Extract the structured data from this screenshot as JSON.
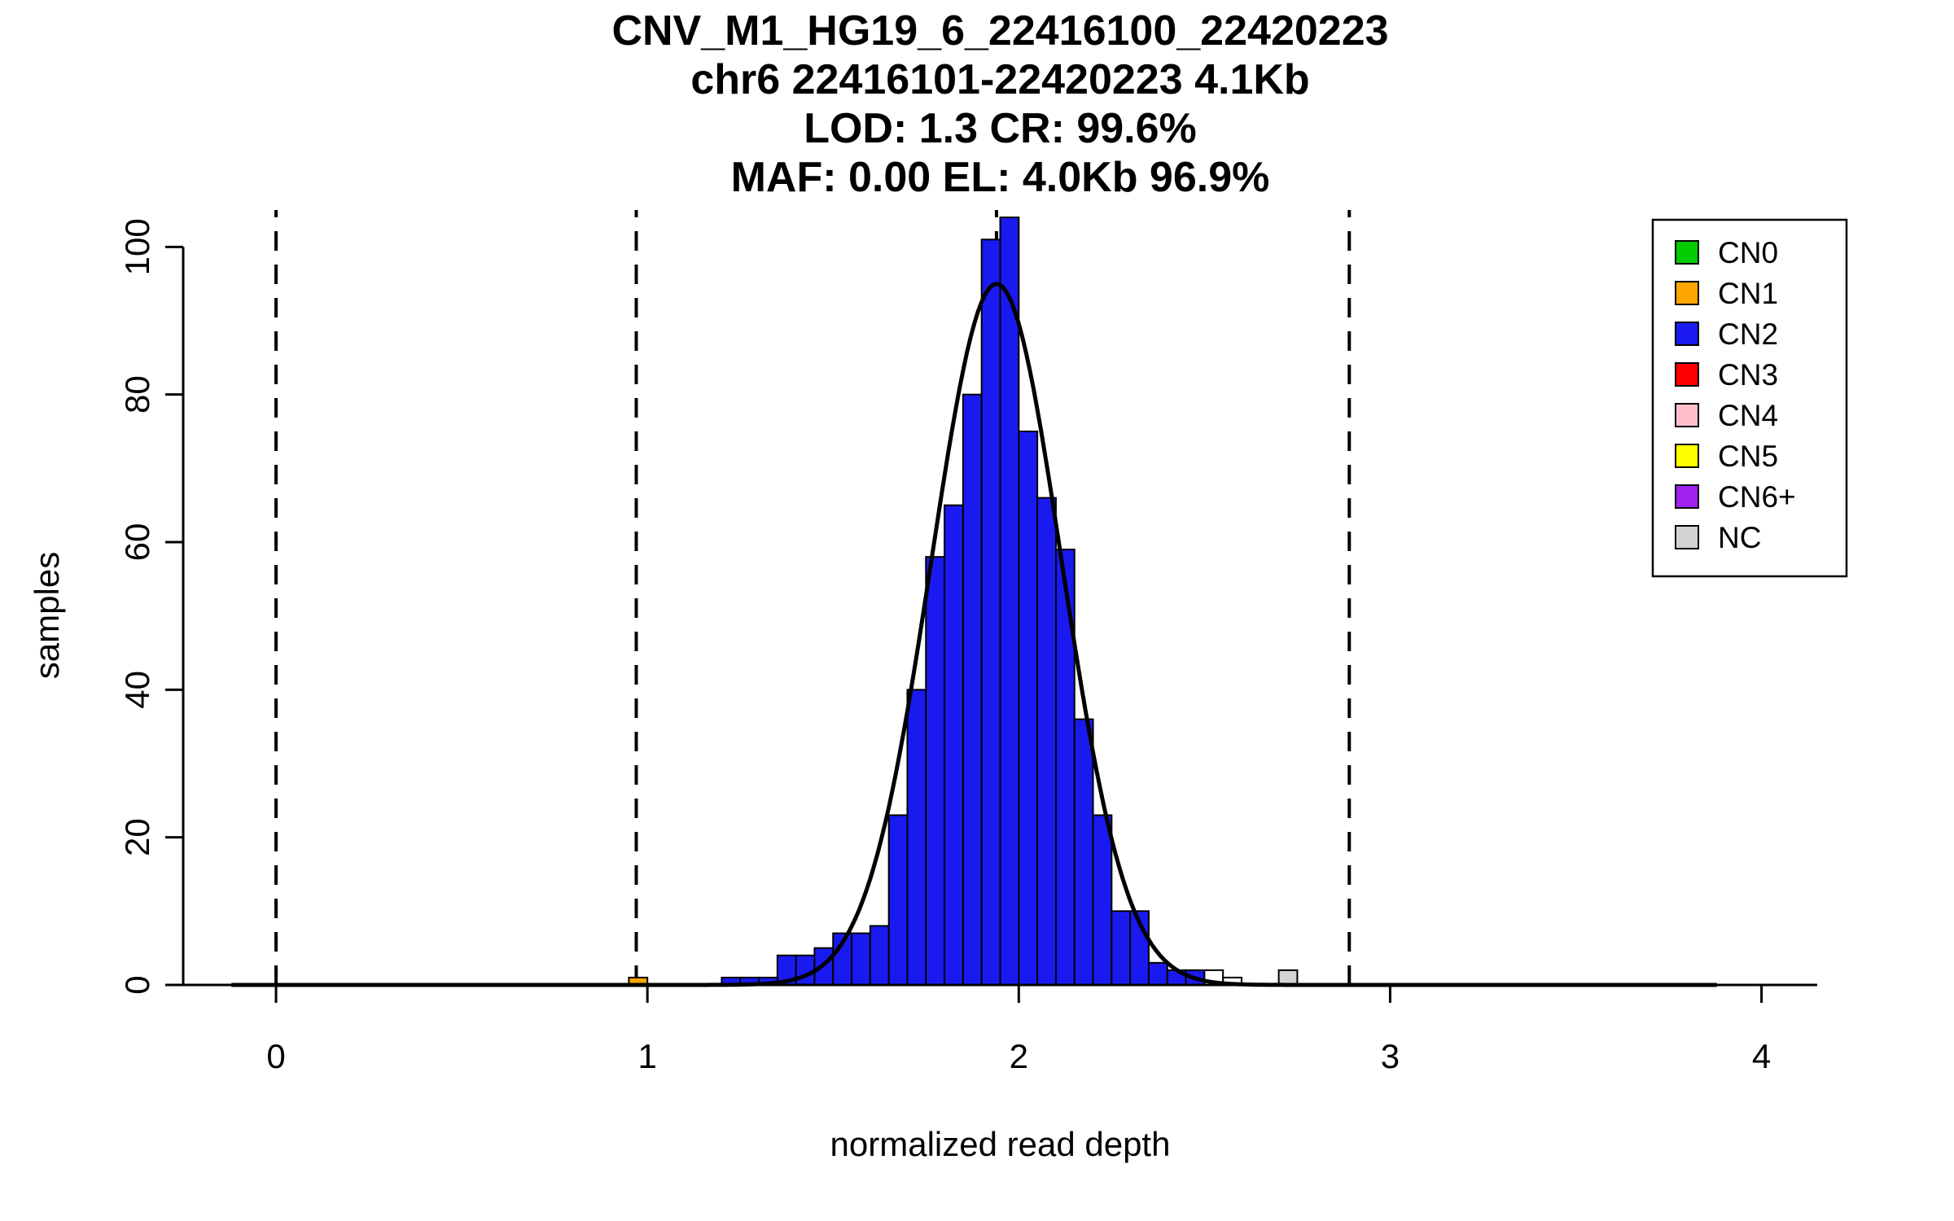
{
  "chart_data": {
    "type": "bar",
    "title_lines": [
      "CNV_M1_HG19_6_22416100_22420223",
      "chr6 22416101-22420223 4.1Kb",
      "LOD: 1.3 CR: 99.6%",
      "MAF: 0.00 EL: 4.0Kb 96.9%"
    ],
    "stats": {
      "cnv_id": "CNV_M1_HG19_6_22416100_22420223",
      "locus": "chr6 22416101-22420223",
      "size": "4.1Kb",
      "lod": "1.3",
      "call_rate": "99.6%",
      "maf": "0.00",
      "effective_length": "4.0Kb 96.9%"
    },
    "xlabel": "normalized read depth",
    "ylabel": "samples",
    "xlim": [
      -0.25,
      4.15
    ],
    "ylim": [
      0,
      105
    ],
    "x_ticks": [
      0,
      1,
      2,
      3,
      4
    ],
    "y_ticks": [
      0,
      20,
      40,
      60,
      80,
      100
    ],
    "grid": false,
    "legend_position": "top-right",
    "bin_width": 0.05,
    "bars": [
      {
        "x": 0.95,
        "h": 1,
        "cn": "CN1"
      },
      {
        "x": 1.2,
        "h": 1,
        "cn": "CN2"
      },
      {
        "x": 1.25,
        "h": 1,
        "cn": "CN2"
      },
      {
        "x": 1.3,
        "h": 1,
        "cn": "CN2"
      },
      {
        "x": 1.35,
        "h": 4,
        "cn": "CN2"
      },
      {
        "x": 1.4,
        "h": 4,
        "cn": "CN2"
      },
      {
        "x": 1.45,
        "h": 5,
        "cn": "CN2"
      },
      {
        "x": 1.5,
        "h": 7,
        "cn": "CN2"
      },
      {
        "x": 1.55,
        "h": 7,
        "cn": "CN2"
      },
      {
        "x": 1.6,
        "h": 8,
        "cn": "CN2"
      },
      {
        "x": 1.65,
        "h": 23,
        "cn": "CN2"
      },
      {
        "x": 1.7,
        "h": 40,
        "cn": "CN2"
      },
      {
        "x": 1.75,
        "h": 58,
        "cn": "CN2"
      },
      {
        "x": 1.8,
        "h": 65,
        "cn": "CN2"
      },
      {
        "x": 1.85,
        "h": 80,
        "cn": "CN2"
      },
      {
        "x": 1.9,
        "h": 101,
        "cn": "CN2"
      },
      {
        "x": 1.95,
        "h": 104,
        "cn": "CN2"
      },
      {
        "x": 2.0,
        "h": 75,
        "cn": "CN2"
      },
      {
        "x": 2.05,
        "h": 66,
        "cn": "CN2"
      },
      {
        "x": 2.1,
        "h": 59,
        "cn": "CN2"
      },
      {
        "x": 2.15,
        "h": 36,
        "cn": "CN2"
      },
      {
        "x": 2.2,
        "h": 23,
        "cn": "CN2"
      },
      {
        "x": 2.25,
        "h": 10,
        "cn": "CN2"
      },
      {
        "x": 2.3,
        "h": 10,
        "cn": "CN2"
      },
      {
        "x": 2.35,
        "h": 3,
        "cn": "CN2"
      },
      {
        "x": 2.4,
        "h": 2,
        "cn": "CN2"
      },
      {
        "x": 2.45,
        "h": 2,
        "cn": "CN2"
      },
      {
        "x": 2.5,
        "h": 2,
        "cn": "NC",
        "color": "#FFFFFF"
      },
      {
        "x": 2.55,
        "h": 1,
        "cn": "NC",
        "color": "#FFFFFF"
      },
      {
        "x": 2.7,
        "h": 2,
        "cn": "NC"
      }
    ],
    "dashed_lines_x": [
      0,
      0.97,
      1.94,
      2.89
    ],
    "fit_curve": {
      "mean": 1.94,
      "sd": 0.175,
      "amplitude": 95
    },
    "colors": {
      "CN0": "#00CC00",
      "CN1": "#FFA500",
      "CN2": "#1A1AF0",
      "CN3": "#FF0000",
      "CN4": "#FFC0CB",
      "CN5": "#FFFF00",
      "CN6+": "#A020F0",
      "NC": "#D3D3D3",
      "axis": "#000000",
      "curve": "#000000",
      "bar_border": "#000000"
    },
    "legend": {
      "entries": [
        {
          "key": "CN0",
          "label": "CN0"
        },
        {
          "key": "CN1",
          "label": "CN1"
        },
        {
          "key": "CN2",
          "label": "CN2"
        },
        {
          "key": "CN3",
          "label": "CN3"
        },
        {
          "key": "CN4",
          "label": "CN4"
        },
        {
          "key": "CN5",
          "label": "CN5"
        },
        {
          "key": "CN6+",
          "label": "CN6+"
        },
        {
          "key": "NC",
          "label": "NC"
        }
      ]
    }
  }
}
